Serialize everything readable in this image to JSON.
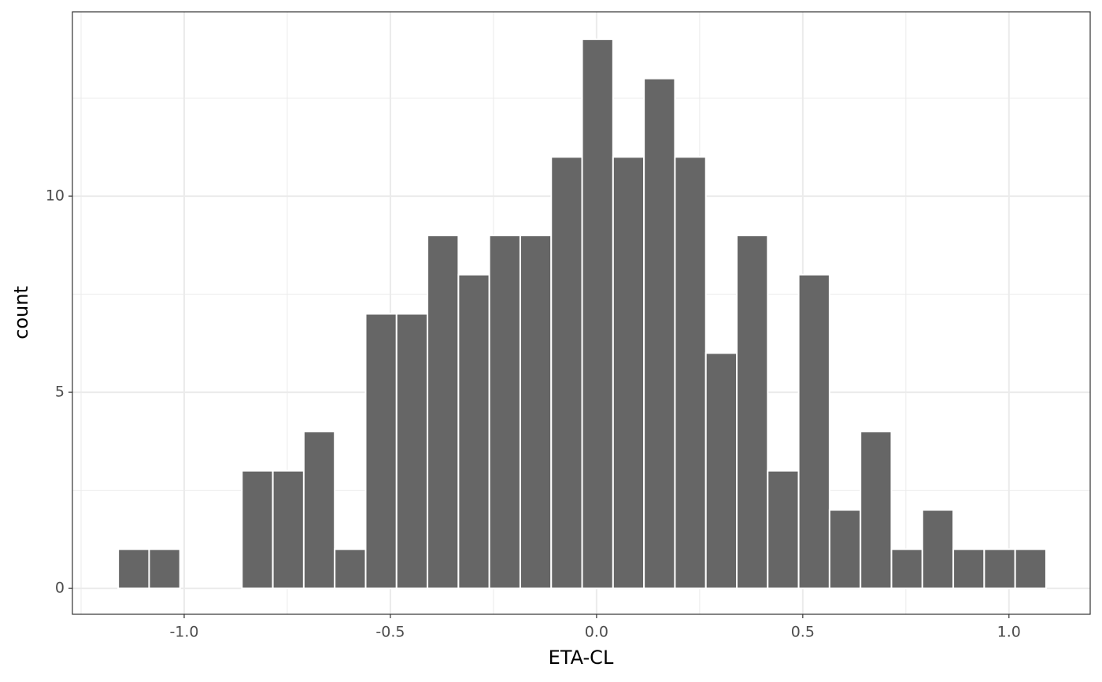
{
  "chart_data": {
    "type": "histogram",
    "x_label": "ETA-CL",
    "y_label": "count",
    "bins": [
      -1.16,
      -1.085,
      -1.01,
      -0.935,
      -0.86,
      -0.785,
      -0.71,
      -0.635,
      -0.56,
      -0.485,
      -0.41,
      -0.335,
      -0.26,
      -0.185,
      -0.11,
      -0.035,
      0.04,
      0.115,
      0.19,
      0.265,
      0.34,
      0.415,
      0.49,
      0.565,
      0.64,
      0.715,
      0.79,
      0.865,
      0.94,
      1.015,
      1.09
    ],
    "values": [
      1,
      1,
      0,
      0,
      3,
      3,
      4,
      1,
      7,
      7,
      9,
      8,
      9,
      9,
      11,
      14,
      11,
      13,
      11,
      6,
      9,
      3,
      8,
      2,
      4,
      1,
      2,
      1,
      1,
      1
    ],
    "color": "#666666",
    "xlim": [
      -1.271,
      1.197
    ],
    "ylim": [
      -0.66,
      14.7
    ],
    "xticks": [
      {
        "value": -1,
        "label": "-1.0"
      },
      {
        "value": -0.5,
        "label": "-0.5"
      },
      {
        "value": 0,
        "label": "0.0"
      },
      {
        "value": 0.5,
        "label": "0.5"
      },
      {
        "value": 1,
        "label": "1.0"
      }
    ],
    "yticks": [
      0,
      5,
      10
    ],
    "grid": true,
    "minor_grid": true
  }
}
